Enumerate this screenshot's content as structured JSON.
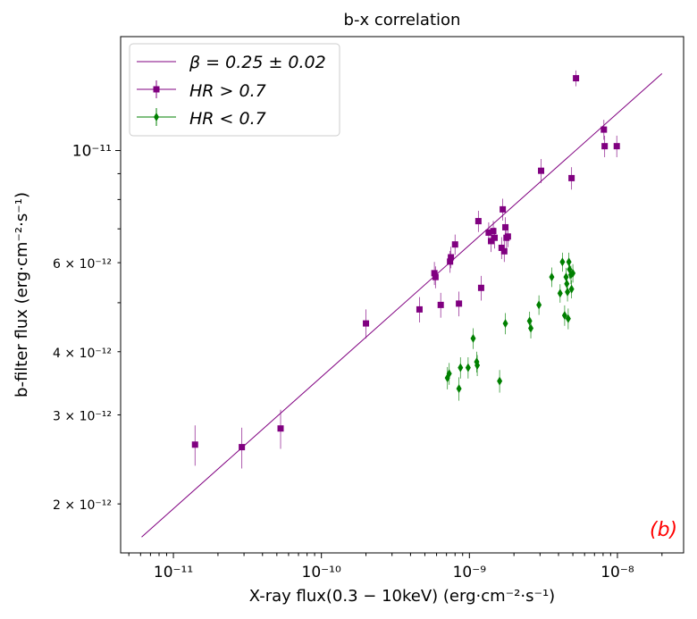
{
  "chart_data": {
    "type": "scatter",
    "title": "b-x correlation",
    "xlabel": "X-ray flux(0.3 − 10keV) (erg·cm⁻²·s⁻¹)",
    "ylabel": "b-filter flux (erg·cm⁻²·s⁻¹)",
    "xscale": "log",
    "yscale": "log",
    "xlim": [
      4.4e-12,
      2.8e-08
    ],
    "ylim": [
      1.6e-12,
      1.68e-11
    ],
    "x_ticks": [
      {
        "value": 1e-11,
        "label": "10⁻¹¹"
      },
      {
        "value": 1e-10,
        "label": "10⁻¹⁰"
      },
      {
        "value": 1e-09,
        "label": "10⁻⁹"
      },
      {
        "value": 1e-08,
        "label": "10⁻⁸"
      }
    ],
    "y_ticks": [
      {
        "value": 1e-11,
        "label": "10⁻¹¹"
      },
      {
        "value": 6e-12,
        "label": "6 × 10⁻¹²"
      },
      {
        "value": 4e-12,
        "label": "4 × 10⁻¹²"
      },
      {
        "value": 3e-12,
        "label": "3 × 10⁻¹²"
      },
      {
        "value": 2e-12,
        "label": "2 × 10⁻¹²"
      }
    ],
    "grid": false,
    "legend_position": "top-left",
    "panel_label": "(b)",
    "fit_line": {
      "name": "β = 0.25 ± 0.02",
      "slope": 0.25,
      "color": "#800080",
      "x_range": [
        6.1e-12,
        2e-08
      ],
      "y_range": [
        1.72e-12,
        1.42e-11
      ]
    },
    "series": [
      {
        "name": "HR > 0.7",
        "marker": "square",
        "color": "#800080",
        "points": [
          {
            "x": 1.4e-11,
            "y": 2.62e-12,
            "yerr": 2.4e-13
          },
          {
            "x": 2.9e-11,
            "y": 2.59e-12,
            "yerr": 2.4e-13
          },
          {
            "x": 5.3e-11,
            "y": 2.82e-12,
            "yerr": 2.5e-13
          },
          {
            "x": 2e-10,
            "y": 4.55e-12,
            "yerr": 3e-13
          },
          {
            "x": 4.6e-10,
            "y": 4.85e-12,
            "yerr": 2.8e-13
          },
          {
            "x": 5.8e-10,
            "y": 5.72e-12,
            "yerr": 3e-13
          },
          {
            "x": 5.9e-10,
            "y": 5.62e-12,
            "yerr": 2.8e-13
          },
          {
            "x": 6.4e-10,
            "y": 4.95e-12,
            "yerr": 2.8e-13
          },
          {
            "x": 7.4e-10,
            "y": 6.03e-12,
            "yerr": 3e-13
          },
          {
            "x": 7.5e-10,
            "y": 6.15e-12,
            "yerr": 3e-13
          },
          {
            "x": 8e-10,
            "y": 6.52e-12,
            "yerr": 3e-13
          },
          {
            "x": 8.5e-10,
            "y": 4.98e-12,
            "yerr": 2.8e-13
          },
          {
            "x": 1.15e-09,
            "y": 7.25e-12,
            "yerr": 3.5e-13
          },
          {
            "x": 1.2e-09,
            "y": 5.35e-12,
            "yerr": 3e-13
          },
          {
            "x": 1.35e-09,
            "y": 6.88e-12,
            "yerr": 3.3e-13
          },
          {
            "x": 1.4e-09,
            "y": 6.62e-12,
            "yerr": 3.2e-13
          },
          {
            "x": 1.45e-09,
            "y": 6.93e-12,
            "yerr": 3.3e-13
          },
          {
            "x": 1.48e-09,
            "y": 6.72e-12,
            "yerr": 3.2e-13
          },
          {
            "x": 1.65e-09,
            "y": 6.42e-12,
            "yerr": 3.2e-13
          },
          {
            "x": 1.68e-09,
            "y": 7.65e-12,
            "yerr": 3.8e-13
          },
          {
            "x": 1.72e-09,
            "y": 6.32e-12,
            "yerr": 3e-13
          },
          {
            "x": 1.75e-09,
            "y": 7.05e-12,
            "yerr": 3.3e-13
          },
          {
            "x": 1.78e-09,
            "y": 6.72e-12,
            "yerr": 3.2e-13
          },
          {
            "x": 1.82e-09,
            "y": 6.76e-12,
            "yerr": 3.2e-13
          },
          {
            "x": 3.05e-09,
            "y": 9.12e-12,
            "yerr": 5e-13
          },
          {
            "x": 4.9e-09,
            "y": 8.82e-12,
            "yerr": 4.5e-13
          },
          {
            "x": 5.25e-09,
            "y": 1.39e-11,
            "yerr": 5e-13
          },
          {
            "x": 8.1e-09,
            "y": 1.1e-11,
            "yerr": 5e-13
          },
          {
            "x": 8.2e-09,
            "y": 1.02e-11,
            "yerr": 5e-13
          },
          {
            "x": 9.9e-09,
            "y": 1.02e-11,
            "yerr": 5e-13
          }
        ]
      },
      {
        "name": "HR < 0.7",
        "marker": "diamond",
        "color": "#008000",
        "points": [
          {
            "x": 7.1e-10,
            "y": 3.55e-12,
            "yerr": 1.8e-13
          },
          {
            "x": 7.3e-10,
            "y": 3.62e-12,
            "yerr": 1.8e-13
          },
          {
            "x": 8.5e-10,
            "y": 3.38e-12,
            "yerr": 1.8e-13
          },
          {
            "x": 8.7e-10,
            "y": 3.72e-12,
            "yerr": 1.8e-13
          },
          {
            "x": 9.8e-10,
            "y": 3.72e-12,
            "yerr": 1.8e-13
          },
          {
            "x": 1.06e-09,
            "y": 4.25e-12,
            "yerr": 2e-13
          },
          {
            "x": 1.12e-09,
            "y": 3.82e-12,
            "yerr": 1.8e-13
          },
          {
            "x": 1.13e-09,
            "y": 3.76e-12,
            "yerr": 1.8e-13
          },
          {
            "x": 1.6e-09,
            "y": 3.5e-12,
            "yerr": 1.8e-13
          },
          {
            "x": 1.75e-09,
            "y": 4.55e-12,
            "yerr": 2.2e-13
          },
          {
            "x": 2.55e-09,
            "y": 4.6e-12,
            "yerr": 2e-13
          },
          {
            "x": 2.6e-09,
            "y": 4.45e-12,
            "yerr": 2e-13
          },
          {
            "x": 2.95e-09,
            "y": 4.95e-12,
            "yerr": 2.2e-13
          },
          {
            "x": 3.6e-09,
            "y": 5.62e-12,
            "yerr": 2.5e-13
          },
          {
            "x": 4.1e-09,
            "y": 5.22e-12,
            "yerr": 2.2e-13
          },
          {
            "x": 4.25e-09,
            "y": 6.02e-12,
            "yerr": 2.6e-13
          },
          {
            "x": 4.4e-09,
            "y": 4.72e-12,
            "yerr": 2.2e-13
          },
          {
            "x": 4.5e-09,
            "y": 5.62e-12,
            "yerr": 2.4e-13
          },
          {
            "x": 4.55e-09,
            "y": 5.45e-12,
            "yerr": 2.4e-13
          },
          {
            "x": 4.6e-09,
            "y": 5.25e-12,
            "yerr": 2.2e-13
          },
          {
            "x": 4.65e-09,
            "y": 4.65e-12,
            "yerr": 2.2e-13
          },
          {
            "x": 4.7e-09,
            "y": 6.02e-12,
            "yerr": 2.6e-13
          },
          {
            "x": 4.75e-09,
            "y": 5.82e-12,
            "yerr": 2.5e-13
          },
          {
            "x": 4.85e-09,
            "y": 5.68e-12,
            "yerr": 2.4e-13
          },
          {
            "x": 4.9e-09,
            "y": 5.32e-12,
            "yerr": 2.2e-13
          },
          {
            "x": 5e-09,
            "y": 5.72e-12,
            "yerr": 2.4e-13
          }
        ]
      }
    ]
  }
}
